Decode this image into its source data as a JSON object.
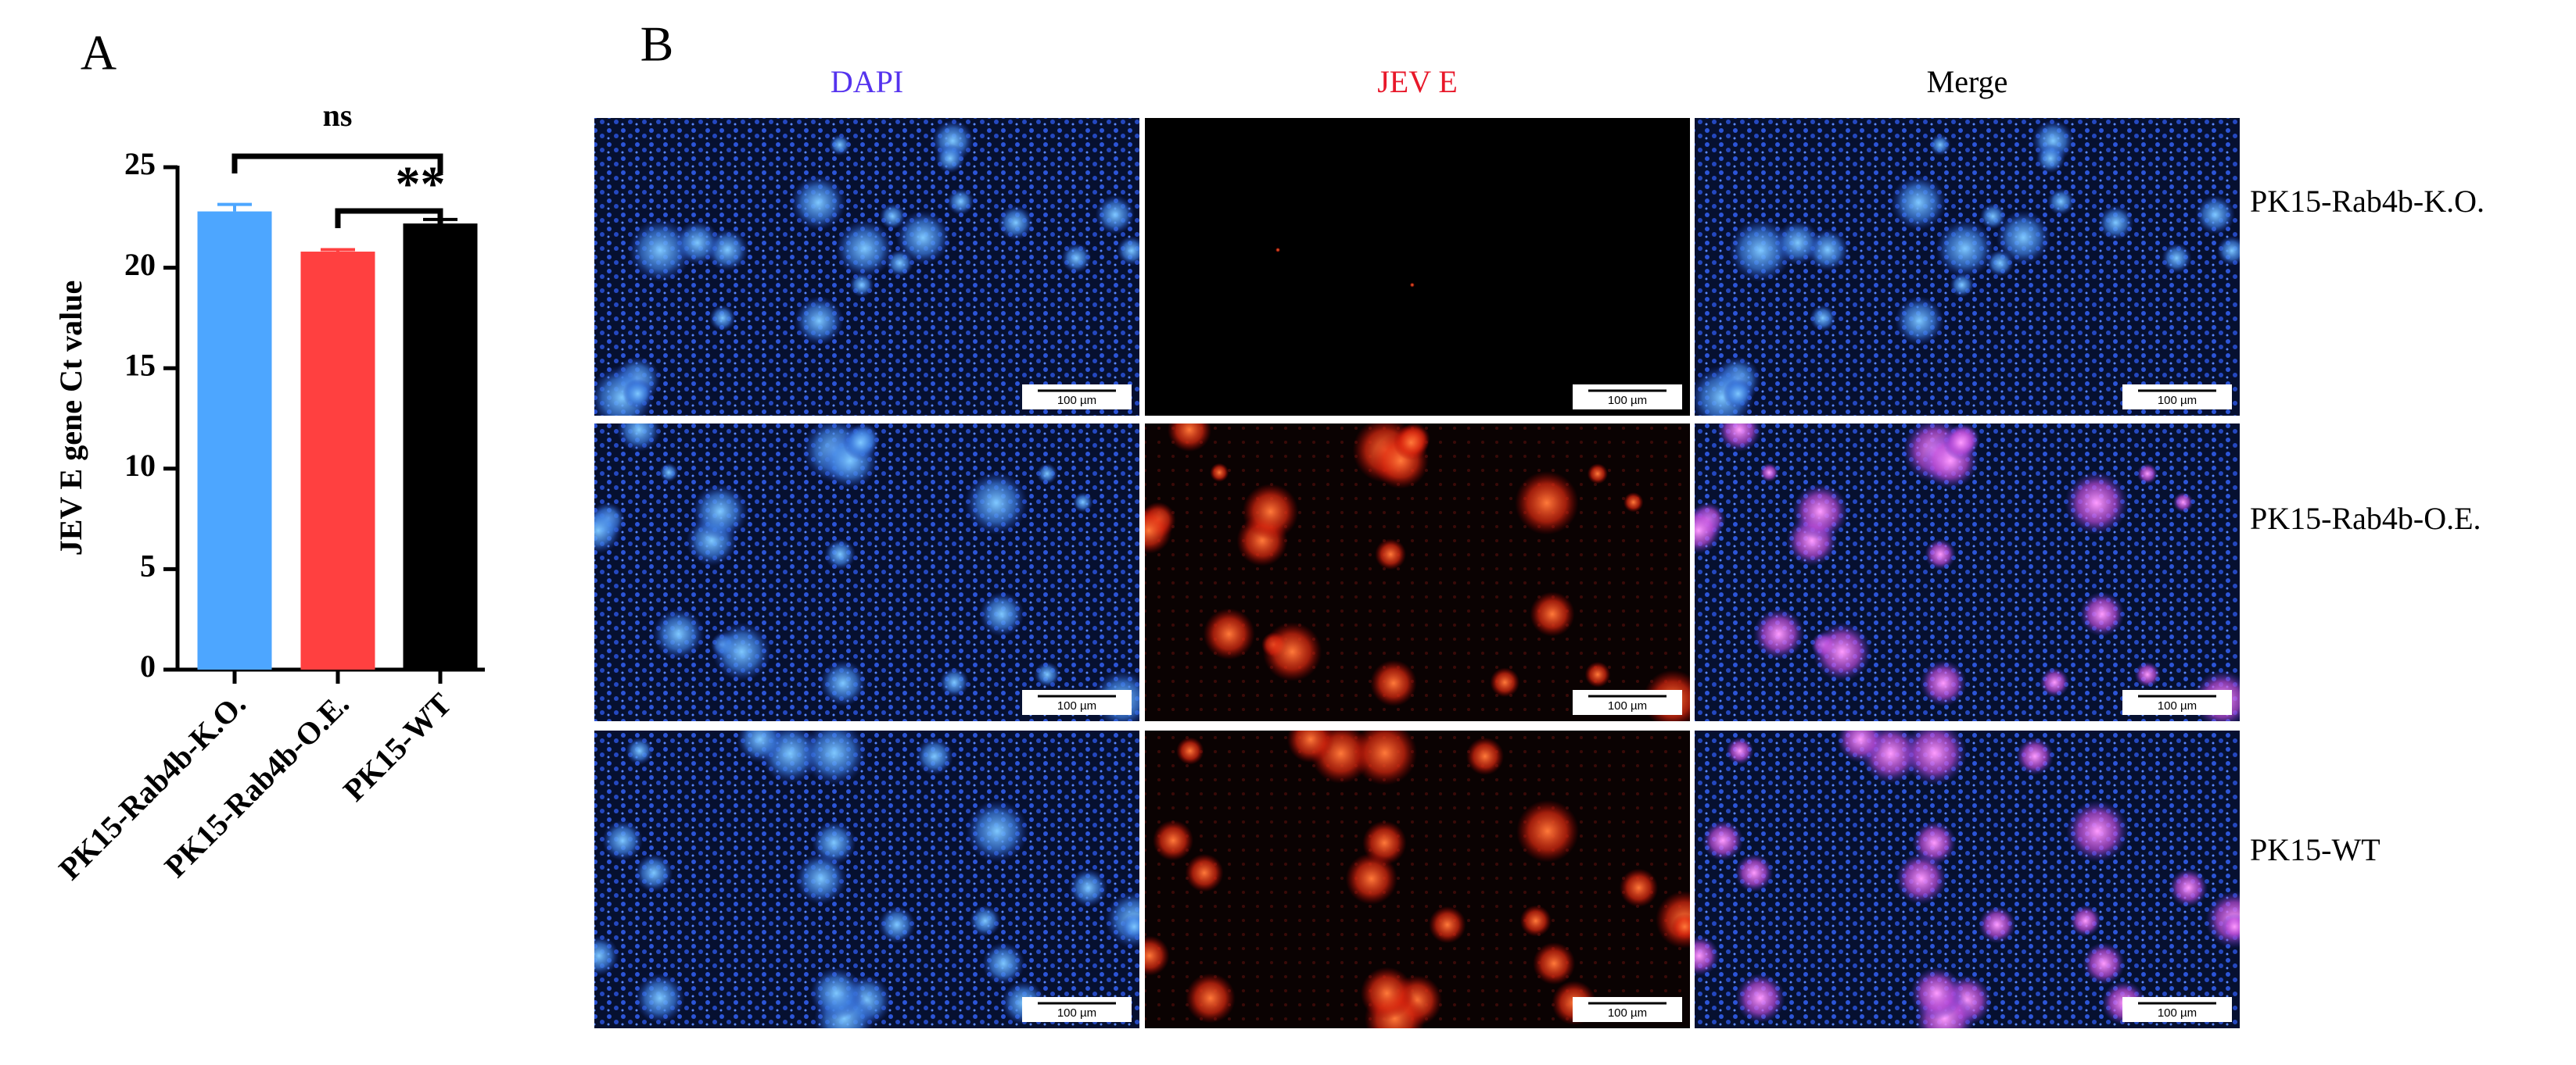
{
  "chart_data": {
    "type": "bar",
    "panel_label": "A",
    "y_label": "JEV E gene Ct value",
    "categories": [
      "PK15-Rab4b-K.O.",
      "PK15-Rab4b-O.E.",
      "PK15-WT"
    ],
    "values": [
      22.8,
      20.8,
      22.2
    ],
    "errors": [
      0.35,
      0.1,
      0.2
    ],
    "colors": [
      "#4da6ff",
      "#ff4040",
      "#000000"
    ],
    "ylim": [
      0,
      25
    ],
    "yticks": [
      0,
      5,
      10,
      15,
      20,
      25
    ],
    "annotations": [
      "ns",
      "**"
    ]
  },
  "microscopy": {
    "panel_label": "B",
    "columns": [
      "DAPI",
      "JEV E",
      "Merge"
    ],
    "rows": [
      "PK15-Rab4b-K.O.",
      "PK15-Rab4b-O.E.",
      "PK15-WT"
    ],
    "scale_bar": "100 µm"
  }
}
